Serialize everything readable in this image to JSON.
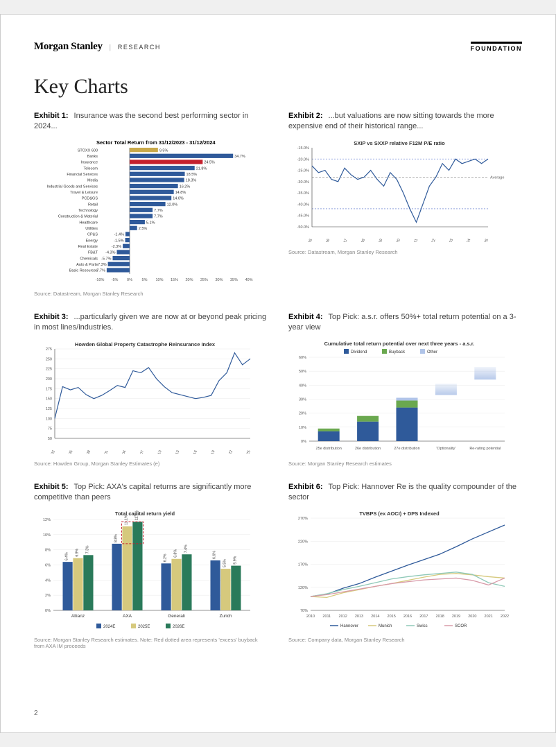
{
  "header": {
    "brand": "Morgan Stanley",
    "research": "RESEARCH",
    "foundation": "FOUNDATION"
  },
  "title": "Key Charts",
  "page_number": "2",
  "exhibits": {
    "e1": {
      "label": "Exhibit 1:",
      "caption": "Insurance was the second best performing sector in 2024...",
      "source": "Source: Datastream, Morgan Stanley Research",
      "chart": {
        "type": "bar-horizontal",
        "title": "Sector Total Return from 31/12/2023 - 31/12/2024",
        "title_fontsize": 7.5,
        "xlim": [
          -10,
          40
        ],
        "xtick_step": 5,
        "bg": "#ffffff",
        "label_fontsize": 6,
        "axis_color": "#333",
        "categories": [
          "STOXX 600",
          "Banks",
          "Insurance",
          "Telecom",
          "Financial Services",
          "Media",
          "Industrial Goods and Services",
          "Travel & Leisure",
          "PCD&GS",
          "Retail",
          "Technology",
          "Construction & Material",
          "Healthcare",
          "Utilities",
          "CP&S",
          "Energy",
          "Real Estate",
          "FB&T",
          "Chemicals",
          "Auto & Parts",
          "Basic Resources"
        ],
        "values": [
          9.5,
          34.7,
          24.5,
          21.8,
          18.5,
          18.3,
          16.2,
          14.8,
          14.0,
          12.0,
          7.7,
          7.7,
          5.1,
          2.5,
          -1.4,
          -1.5,
          -2.3,
          -4.3,
          -5.7,
          -7.3,
          -7.7
        ],
        "colors": [
          "#c9a94a",
          "#2f5a9a",
          "#c4202d",
          "#2f5a9a",
          "#2f5a9a",
          "#2f5a9a",
          "#2f5a9a",
          "#2f5a9a",
          "#2f5a9a",
          "#2f5a9a",
          "#2f5a9a",
          "#2f5a9a",
          "#2f5a9a",
          "#2f5a9a",
          "#2f5a9a",
          "#2f5a9a",
          "#2f5a9a",
          "#2f5a9a",
          "#2f5a9a",
          "#2f5a9a",
          "#2f5a9a"
        ]
      }
    },
    "e2": {
      "label": "Exhibit 2:",
      "caption": "...but valuations are now sitting towards the more expensive end of their historical range...",
      "source": "Source: Datastream, Morgan Stanley Research",
      "chart": {
        "type": "line",
        "title": "SXIP vs SXXP relative F12M P/E ratio",
        "title_fontsize": 7.5,
        "ylim": [
          -50,
          -15
        ],
        "ytick_step": 5,
        "line_color": "#2f5a9a",
        "line_width": 1.2,
        "avg_line": -28,
        "avg_color": "#888",
        "upper_band": -20,
        "lower_band": -42,
        "band_color": "#7a8fd6",
        "xlabels": [
          "Jan-15",
          "Jan-16",
          "Jan-17",
          "Jan-18",
          "Jan-19",
          "Jan-20",
          "Jan-21",
          "Jan-22",
          "Jan-23",
          "Jan-24",
          "Jan-25"
        ],
        "data": [
          -23,
          -26,
          -25,
          -29,
          -30,
          -24,
          -27,
          -29,
          -28,
          -25,
          -29,
          -32,
          -26,
          -29,
          -35,
          -42,
          -48,
          -40,
          -32,
          -28,
          -22,
          -25,
          -20,
          -22,
          -21,
          -20,
          -22,
          -20
        ]
      }
    },
    "e3": {
      "label": "Exhibit 3:",
      "caption": "...particularly given we are now at or beyond peak pricing in most lines/industries.",
      "source": "Source: Howden Group, Morgan Stanley Estimates (e)",
      "chart": {
        "type": "line",
        "title": "Howden Global Property Catastrophe Reinsurance Index",
        "title_fontsize": 7.5,
        "ylim": [
          50,
          275
        ],
        "ytick_step": 25,
        "line_color": "#2f5a9a",
        "line_width": 1.2,
        "xlabels": [
          "1992",
          "1995",
          "1998",
          "2001",
          "2004",
          "2007",
          "2010",
          "2013",
          "2016",
          "2019",
          "2022",
          "2025"
        ],
        "data": [
          100,
          180,
          172,
          178,
          160,
          150,
          158,
          170,
          183,
          178,
          220,
          215,
          228,
          200,
          180,
          165,
          160,
          155,
          150,
          153,
          158,
          195,
          215,
          265,
          235,
          250
        ]
      }
    },
    "e4": {
      "label": "Exhibit 4:",
      "caption": "Top Pick: a.s.r. offers 50%+ total return potential on a 3-year view",
      "source": "Source: Morgan Stanley Research estimates",
      "chart": {
        "type": "stacked-bar",
        "title": "Cumulative total return potential over next three years - a.s.r.",
        "title_fontsize": 7.5,
        "ylim": [
          0,
          60
        ],
        "ytick_step": 10,
        "legend": [
          {
            "label": "Dividend",
            "color": "#2f5a9a"
          },
          {
            "label": "Buyback",
            "color": "#6aa84f"
          },
          {
            "label": "Other",
            "color": "#b0c4e8"
          }
        ],
        "categories": [
          "25e distribution",
          "26e distribution",
          "27e distribution",
          "'Optionality'",
          "Re-rating potential"
        ],
        "stacks": [
          {
            "div": 7,
            "buy": 2,
            "other": 0
          },
          {
            "div": 14,
            "buy": 4,
            "other": 0
          },
          {
            "div": 24,
            "buy": 5,
            "other": 2
          },
          {
            "div": 0,
            "buy": 0,
            "other": 8,
            "float": 33
          },
          {
            "div": 0,
            "buy": 0,
            "other": 9,
            "float": 44
          }
        ]
      }
    },
    "e5": {
      "label": "Exhibit 5:",
      "caption": "Top Pick: AXA's capital returns are significantly more competitive than peers",
      "source": "Source: Morgan Stanley Research estimates. Note: Red dotted area represents 'excess' buyback from AXA IM proceeds",
      "chart": {
        "type": "grouped-bar",
        "title": "Total capital return yield",
        "title_fontsize": 7.5,
        "ylim": [
          0,
          12
        ],
        "ytick_step": 2,
        "categories": [
          "Allianz",
          "AXA",
          "Generali",
          "Zurich"
        ],
        "series": [
          {
            "label": "2024E",
            "color": "#2f5a9a",
            "values": [
              6.4,
              8.8,
              6.2,
              6.6
            ]
          },
          {
            "label": "2025E",
            "color": "#d6c97d",
            "values": [
              6.9,
              11.1,
              6.8,
              5.5
            ]
          },
          {
            "label": "2026E",
            "color": "#2a7a5a",
            "values": [
              7.3,
              11.7,
              7.4,
              5.9
            ]
          }
        ],
        "excess_box": {
          "cat": "AXA",
          "from": 8.8,
          "to": 11.7,
          "color": "#c4202d"
        }
      }
    },
    "e6": {
      "label": "Exhibit 6:",
      "caption": "Top Pick: Hannover Re is the quality compounder of the sector",
      "source": "Source: Company data, Morgan Stanley Research",
      "chart": {
        "type": "multi-line",
        "title": "TVBPS (ex AOCI) + DPS Indexed",
        "title_fontsize": 7.5,
        "ylim": [
          70,
          270
        ],
        "ytick_step": 50,
        "xlabels": [
          "2010",
          "2011",
          "2012",
          "2013",
          "2014",
          "2015",
          "2016",
          "2017",
          "2018",
          "2019",
          "2020",
          "2021",
          "2022"
        ],
        "series": [
          {
            "label": "Hannover",
            "color": "#2f5a9a",
            "data": [
              100,
              105,
              118,
              128,
              142,
              155,
              168,
              180,
              192,
              208,
              225,
              240,
              255
            ]
          },
          {
            "label": "Munich",
            "color": "#d6c97d",
            "data": [
              100,
              98,
              108,
              115,
              122,
              128,
              135,
              142,
              148,
              150,
              147,
              143,
              140
            ]
          },
          {
            "label": "Swiss",
            "color": "#8fc9b8",
            "data": [
              100,
              106,
              115,
              122,
              130,
              138,
              143,
              147,
              150,
              153,
              148,
              130,
              122
            ]
          },
          {
            "label": "SCOR",
            "color": "#d89aa8",
            "data": [
              100,
              104,
              110,
              116,
              122,
              128,
              132,
              136,
              138,
              140,
              135,
              125,
              140
            ]
          }
        ]
      }
    }
  }
}
